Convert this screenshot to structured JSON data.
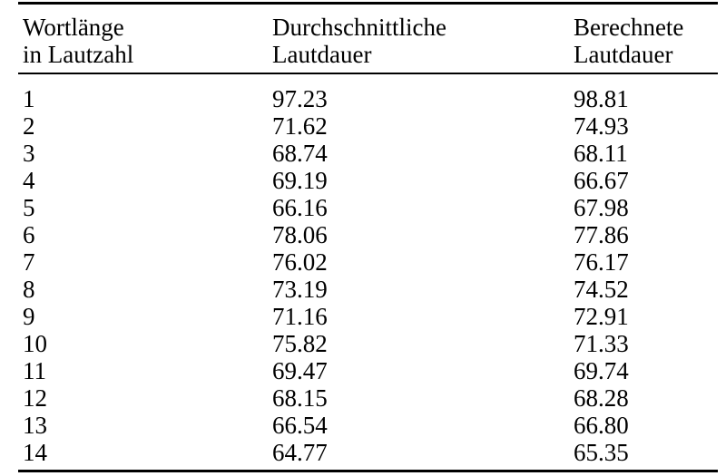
{
  "header": {
    "col1": {
      "line1": "Wortlänge",
      "line2": "in Lautzahl"
    },
    "col2": {
      "line1": "Durchschnittliche",
      "line2": "Lautdauer"
    },
    "col3": {
      "line1": "Berechnete",
      "line2": "Lautdauer"
    }
  },
  "rows": [
    [
      "1",
      "97.23",
      "98.81"
    ],
    [
      "2",
      "71.62",
      "74.93"
    ],
    [
      "3",
      "68.74",
      "68.11"
    ],
    [
      "4",
      "69.19",
      "66.67"
    ],
    [
      "5",
      "66.16",
      "67.98"
    ],
    [
      "6",
      "78.06",
      "77.86"
    ],
    [
      "7",
      "76.02",
      "76.17"
    ],
    [
      "8",
      "73.19",
      "74.52"
    ],
    [
      "9",
      "71.16",
      "72.91"
    ],
    [
      "10",
      "75.82",
      "71.33"
    ],
    [
      "11",
      "69.47",
      "69.74"
    ],
    [
      "12",
      "68.15",
      "68.28"
    ],
    [
      "13",
      "66.54",
      "66.80"
    ],
    [
      "14",
      "64.77",
      "65.35"
    ]
  ],
  "colors": {
    "background": "#ffffff",
    "text": "#000000",
    "rule": "#000000"
  },
  "chart_data": {
    "type": "table",
    "title": "",
    "columns": [
      "Wortlänge in Lautzahl",
      "Durchschnittliche Lautdauer",
      "Berechnete Lautdauer"
    ],
    "rows": [
      [
        1,
        97.23,
        98.81
      ],
      [
        2,
        71.62,
        74.93
      ],
      [
        3,
        68.74,
        68.11
      ],
      [
        4,
        69.19,
        66.67
      ],
      [
        5,
        66.16,
        67.98
      ],
      [
        6,
        78.06,
        77.86
      ],
      [
        7,
        76.02,
        76.17
      ],
      [
        8,
        73.19,
        74.52
      ],
      [
        9,
        71.16,
        72.91
      ],
      [
        10,
        75.82,
        71.33
      ],
      [
        11,
        69.47,
        69.74
      ],
      [
        12,
        68.15,
        68.28
      ],
      [
        13,
        66.54,
        66.8
      ],
      [
        14,
        64.77,
        65.35
      ]
    ]
  }
}
